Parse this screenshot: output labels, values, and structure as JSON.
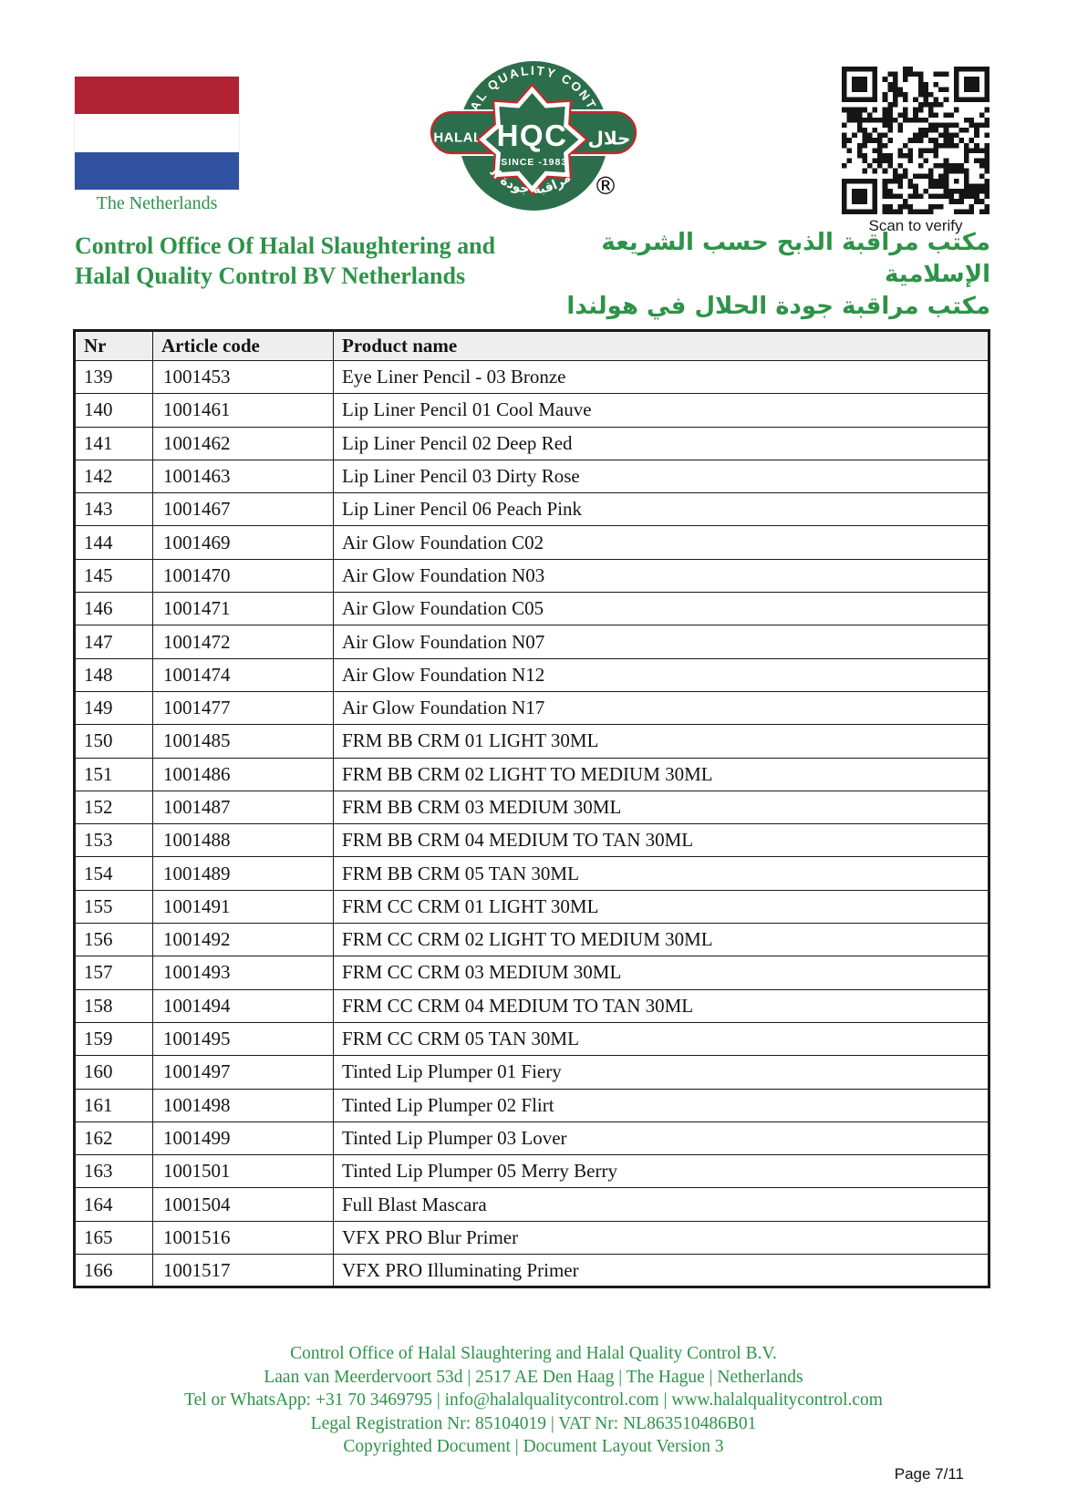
{
  "colors": {
    "green": "#2e9348",
    "logo_green": "#2c6e4b",
    "red": "#c8262c",
    "flag_red": "#b02234",
    "flag_blue": "#30519f",
    "header_bg": "#eeeeee"
  },
  "header": {
    "flag_caption": "The Netherlands",
    "org_title_en_line1": "Control Office Of Halal Slaughtering and",
    "org_title_en_line2": "Halal Quality Control BV Netherlands",
    "org_title_ar_line1": "مكتب مراقبة الذبح حسب الشريعة الإسلامية",
    "org_title_ar_line2": "مكتب مراقبة جودة الحلال في هولندا",
    "qr_caption": "Scan to verify",
    "logo": {
      "arc_top": "HALAL QUALITY CONTROL",
      "pill_left": "HALAL",
      "pill_right": "حلال",
      "center": "HQC",
      "since": "-SINCE -1983",
      "arc_bottom": "مكتب مراقبة جودة الحلال",
      "registered": "®"
    }
  },
  "table": {
    "columns": [
      "Nr",
      "Article code",
      "Product name"
    ],
    "rows": [
      [
        "139",
        "1001453",
        "Eye Liner Pencil - 03 Bronze"
      ],
      [
        "140",
        "1001461",
        "Lip Liner Pencil 01 Cool Mauve"
      ],
      [
        "141",
        "1001462",
        "Lip Liner Pencil 02 Deep Red"
      ],
      [
        "142",
        "1001463",
        "Lip Liner Pencil 03 Dirty Rose"
      ],
      [
        "143",
        "1001467",
        "Lip Liner Pencil 06 Peach Pink"
      ],
      [
        "144",
        "1001469",
        "Air Glow Foundation C02"
      ],
      [
        "145",
        "1001470",
        "Air Glow Foundation N03"
      ],
      [
        "146",
        "1001471",
        "Air Glow Foundation C05"
      ],
      [
        "147",
        "1001472",
        "Air Glow Foundation N07"
      ],
      [
        "148",
        "1001474",
        "Air Glow Foundation N12"
      ],
      [
        "149",
        "1001477",
        "Air Glow Foundation N17"
      ],
      [
        "150",
        "1001485",
        "FRM BB CRM 01 LIGHT 30ML"
      ],
      [
        "151",
        "1001486",
        "FRM BB CRM 02 LIGHT TO MEDIUM 30ML"
      ],
      [
        "152",
        "1001487",
        "FRM BB CRM 03 MEDIUM 30ML"
      ],
      [
        "153",
        "1001488",
        "FRM BB CRM 04 MEDIUM TO TAN 30ML"
      ],
      [
        "154",
        "1001489",
        "FRM BB CRM 05 TAN 30ML"
      ],
      [
        "155",
        "1001491",
        "FRM CC CRM 01 LIGHT 30ML"
      ],
      [
        "156",
        "1001492",
        "FRM CC CRM 02 LIGHT TO MEDIUM 30ML"
      ],
      [
        "157",
        "1001493",
        "FRM CC CRM 03 MEDIUM 30ML"
      ],
      [
        "158",
        "1001494",
        "FRM CC CRM 04 MEDIUM TO TAN 30ML"
      ],
      [
        "159",
        "1001495",
        "FRM CC CRM 05 TAN 30ML"
      ],
      [
        "160",
        "1001497",
        "Tinted Lip Plumper 01 Fiery"
      ],
      [
        "161",
        "1001498",
        "Tinted Lip Plumper 02 Flirt"
      ],
      [
        "162",
        "1001499",
        "Tinted Lip Plumper 03 Lover"
      ],
      [
        "163",
        "1001501",
        "Tinted Lip Plumper 05 Merry Berry"
      ],
      [
        "164",
        "1001504",
        "Full Blast Mascara"
      ],
      [
        "165",
        "1001516",
        "VFX PRO Blur Primer"
      ],
      [
        "166",
        "1001517",
        "VFX PRO Illuminating Primer"
      ]
    ]
  },
  "footer": {
    "lines": [
      "Control Office of Halal Slaughtering and Halal Quality Control B.V.",
      "Laan van Meerdervoort 53d | 2517 AE Den Haag | The Hague | Netherlands",
      "Tel or WhatsApp: +31 70 3469795 | info@halalqualitycontrol.com | www.halalqualitycontrol.com",
      "Legal Registration Nr: 85104019 | VAT Nr: NL863510486B01",
      "Copyrighted Document | Document Layout Version 3"
    ],
    "page": "Page 7/11"
  }
}
